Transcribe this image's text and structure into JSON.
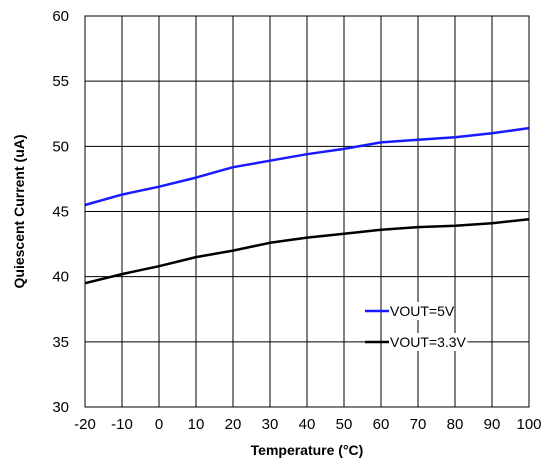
{
  "chart_data": {
    "type": "line",
    "xlabel": "Temperature (°C)",
    "ylabel": "Quiescent Current (uA)",
    "xlim": [
      -20,
      100
    ],
    "ylim": [
      30,
      60
    ],
    "x_ticks": [
      -20,
      -10,
      0,
      10,
      20,
      30,
      40,
      50,
      60,
      70,
      80,
      90,
      100
    ],
    "y_ticks": [
      30,
      35,
      40,
      45,
      50,
      55,
      60
    ],
    "grid": true,
    "legend_position": "lower-right",
    "series": [
      {
        "name": "VOUT=5V",
        "color": "#1a1aff",
        "x": [
          -20,
          -10,
          0,
          10,
          20,
          30,
          40,
          50,
          60,
          70,
          80,
          90,
          100
        ],
        "y": [
          45.5,
          46.3,
          46.9,
          47.6,
          48.4,
          48.9,
          49.4,
          49.8,
          50.3,
          50.5,
          50.7,
          51.0,
          51.4
        ]
      },
      {
        "name": "VOUT=3.3V",
        "color": "#000000",
        "x": [
          -20,
          -10,
          0,
          10,
          20,
          30,
          40,
          50,
          60,
          70,
          80,
          90,
          100
        ],
        "y": [
          39.5,
          40.2,
          40.8,
          41.5,
          42.0,
          42.6,
          43.0,
          43.3,
          43.6,
          43.8,
          43.9,
          44.1,
          44.4
        ]
      }
    ]
  }
}
